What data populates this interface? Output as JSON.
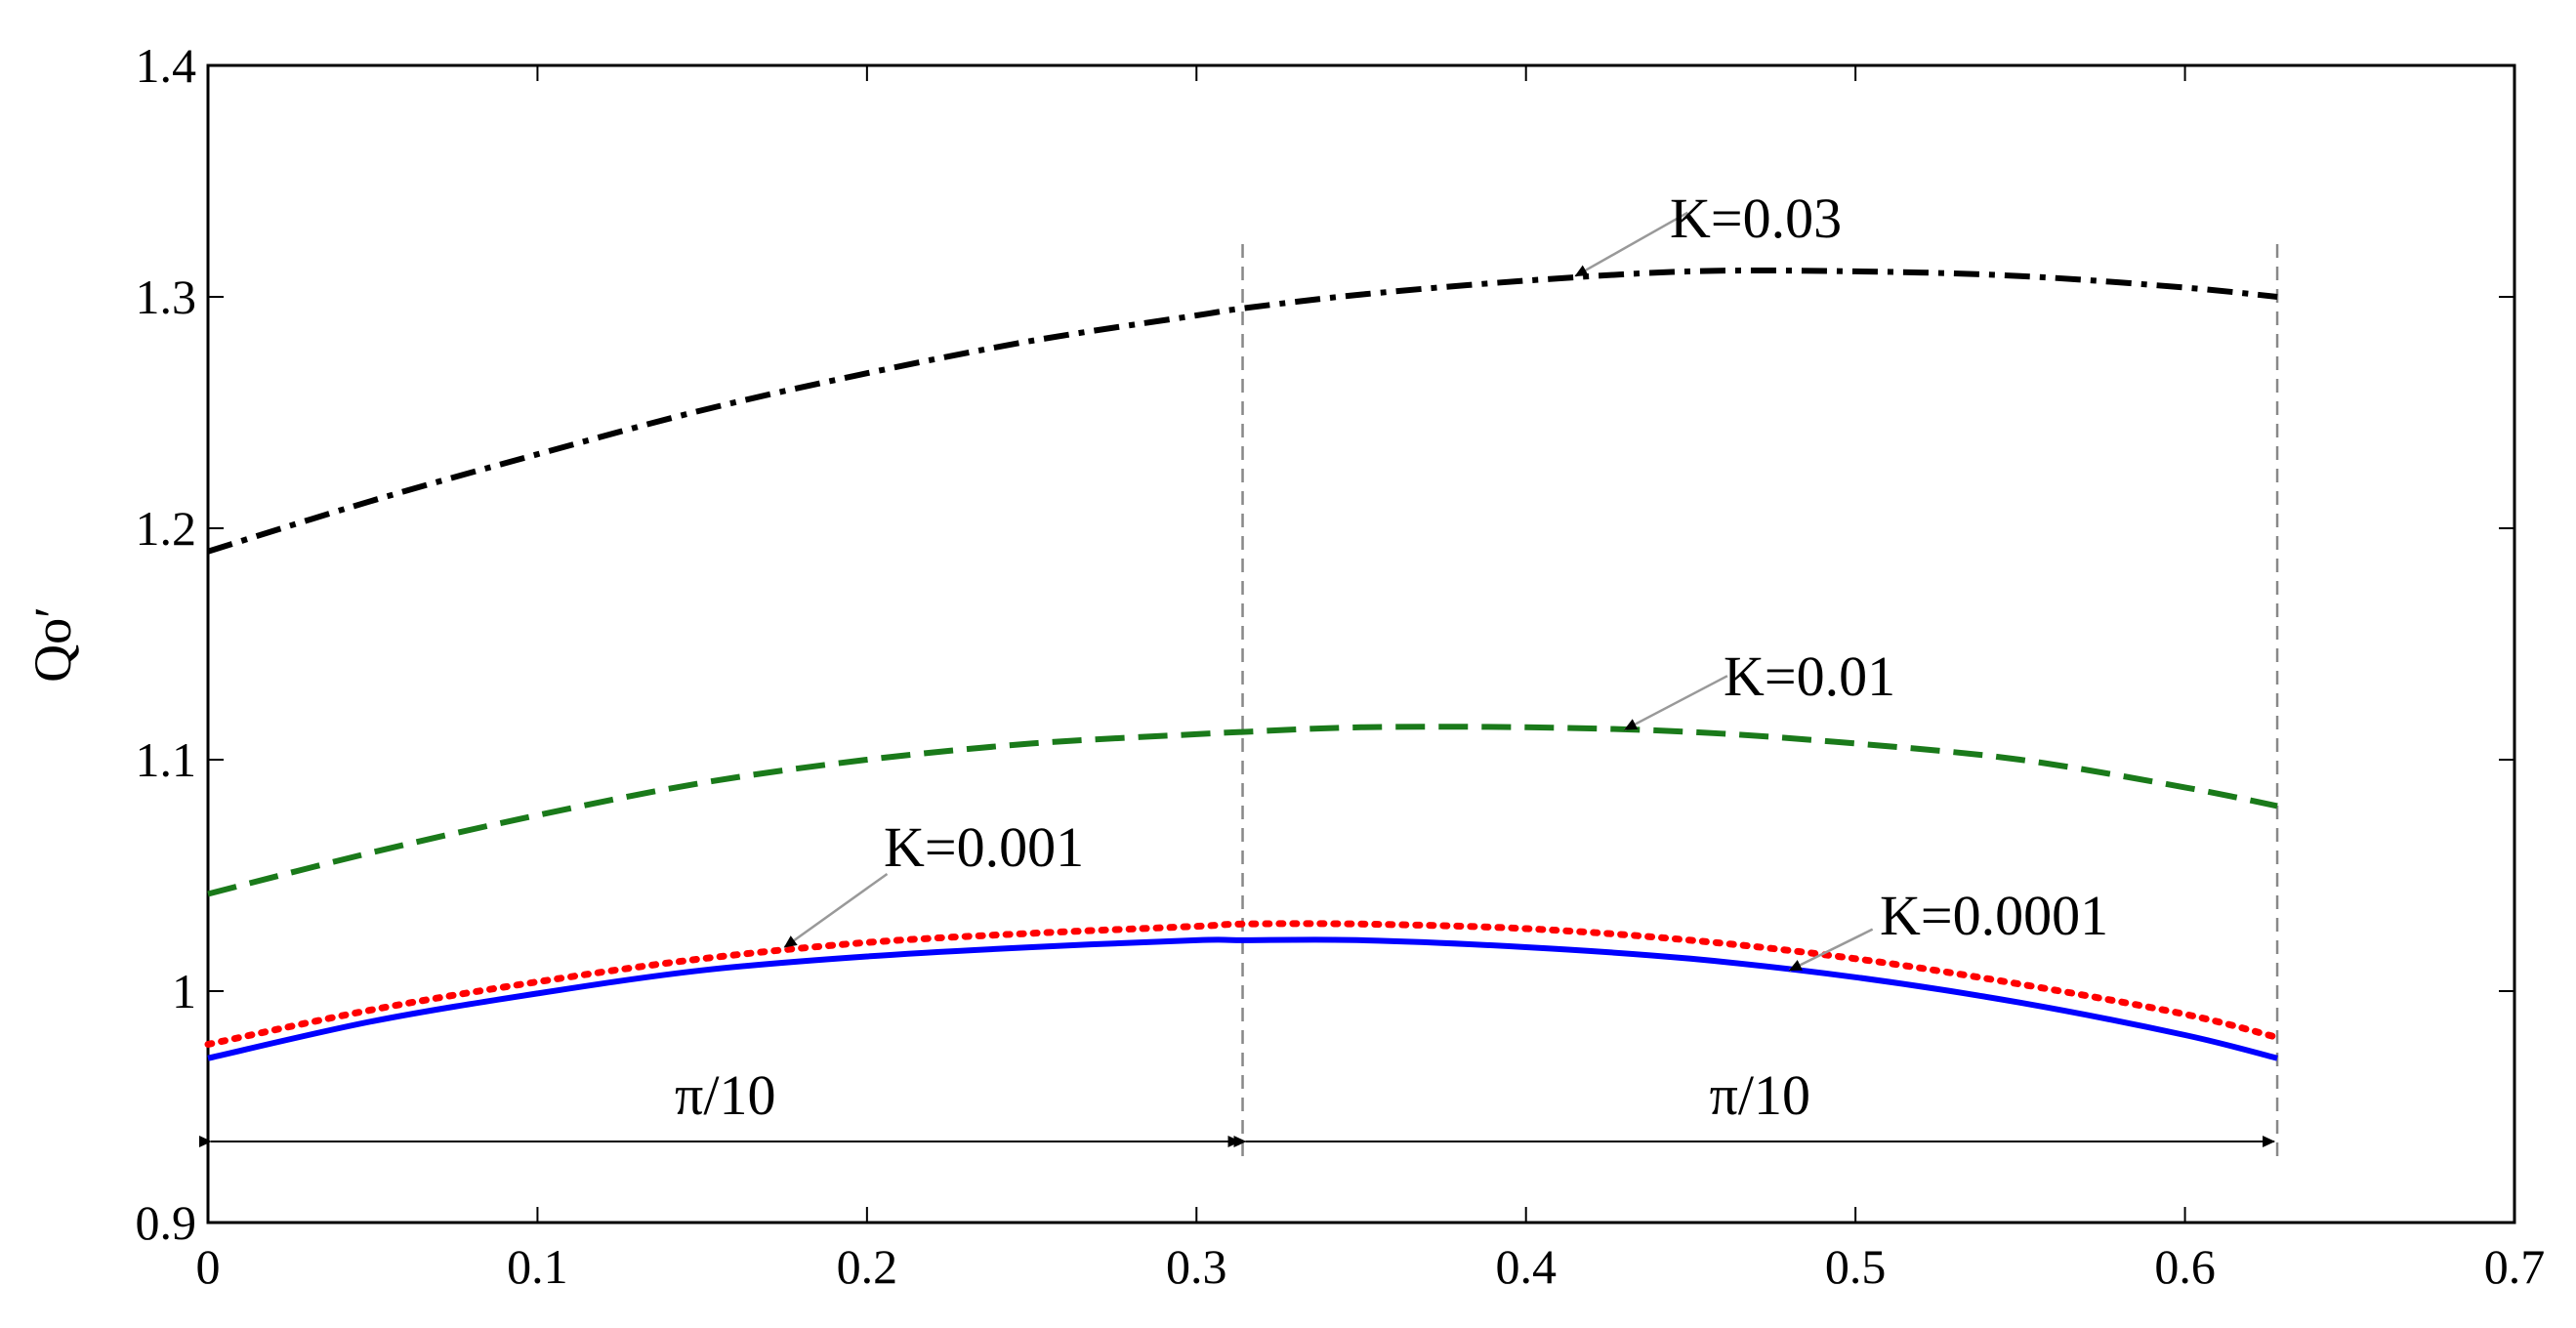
{
  "chart_data": {
    "type": "line",
    "title": "",
    "xlabel": "",
    "ylabel": "Qo′",
    "xlim": [
      0,
      0.7
    ],
    "ylim": [
      0.9,
      1.4
    ],
    "xticks": [
      0,
      0.1,
      0.2,
      0.3,
      0.4,
      0.5,
      0.6,
      0.7
    ],
    "yticks": [
      0.9,
      1.0,
      1.1,
      1.2,
      1.3,
      1.4
    ],
    "xtick_labels": [
      "0",
      "0.1",
      "0.2",
      "0.3",
      "0.4",
      "0.5",
      "0.6",
      "0.7"
    ],
    "ytick_labels": [
      "0.9",
      "1",
      "1.1",
      "1.2",
      "1.3",
      "1.4"
    ],
    "grid": false,
    "x": [
      0,
      0.05,
      0.1,
      0.15,
      0.2,
      0.25,
      0.3,
      0.314,
      0.35,
      0.4,
      0.45,
      0.5,
      0.55,
      0.6,
      0.628
    ],
    "series": [
      {
        "name": "K=0.03",
        "color": "#000000",
        "style": "dashdot",
        "values": [
          1.19,
          1.212,
          1.232,
          1.251,
          1.267,
          1.281,
          1.292,
          1.295,
          1.301,
          1.307,
          1.311,
          1.311,
          1.309,
          1.304,
          1.3
        ]
      },
      {
        "name": "K=0.01",
        "color": "#1a7a1a",
        "style": "dashed",
        "values": [
          1.042,
          1.06,
          1.076,
          1.09,
          1.1,
          1.107,
          1.111,
          1.112,
          1.114,
          1.114,
          1.112,
          1.107,
          1.1,
          1.088,
          1.08
        ]
      },
      {
        "name": "K=0.001",
        "color": "#ff0000",
        "style": "dotted",
        "values": [
          0.977,
          0.992,
          1.004,
          1.014,
          1.021,
          1.025,
          1.028,
          1.029,
          1.029,
          1.027,
          1.022,
          1.014,
          1.003,
          0.99,
          0.98
        ]
      },
      {
        "name": "K=0.0001",
        "color": "#0000ff",
        "style": "solid",
        "values": [
          0.971,
          0.987,
          0.999,
          1.009,
          1.015,
          1.019,
          1.022,
          1.022,
          1.022,
          1.019,
          1.014,
          1.006,
          0.995,
          0.981,
          0.971
        ]
      }
    ],
    "annotations": [
      {
        "text": "K=0.03",
        "arrow_x": 0.415,
        "arrow_y": 1.309
      },
      {
        "text": "K=0.01",
        "arrow_x": 0.43,
        "arrow_y": 1.113
      },
      {
        "text": "K=0.001",
        "arrow_x": 0.175,
        "arrow_y": 1.019
      },
      {
        "text": "K=0.0001",
        "arrow_x": 0.48,
        "arrow_y": 1.009
      }
    ],
    "vlines": [
      0.314,
      0.628
    ],
    "spans": [
      {
        "text": "π/10",
        "from": 0,
        "to": 0.314,
        "y": 0.935
      },
      {
        "text": "π/10",
        "from": 0.314,
        "to": 0.628,
        "y": 0.935
      }
    ]
  }
}
